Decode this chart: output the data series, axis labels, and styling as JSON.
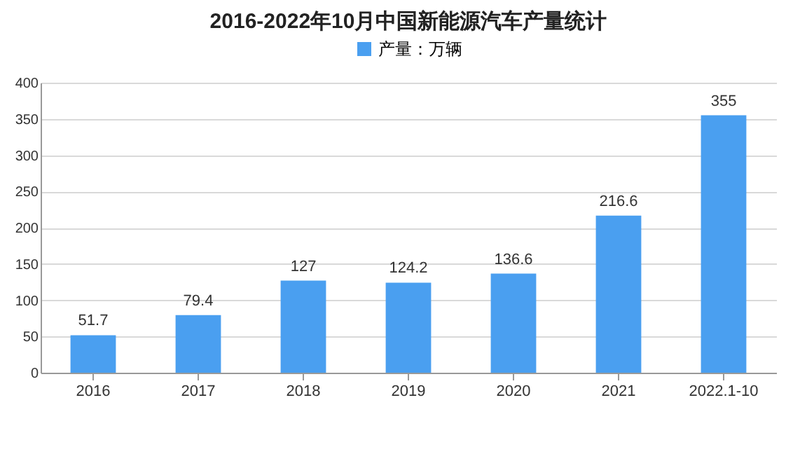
{
  "chart_data": {
    "type": "bar",
    "title": "2016-2022年10月中国新能源汽车产量统计",
    "categories": [
      "2016",
      "2017",
      "2018",
      "2019",
      "2020",
      "2021",
      "2022.1-10"
    ],
    "series": [
      {
        "name": "产量：万辆",
        "color": "#4a9ff0",
        "values": [
          51.7,
          79.4,
          127,
          124.2,
          136.6,
          216.6,
          355
        ]
      }
    ],
    "ylim": [
      0,
      400
    ],
    "yticks": [
      0,
      50,
      100,
      150,
      200,
      250,
      300,
      350,
      400
    ],
    "grid": "y",
    "legend": "top",
    "data_labels": true
  }
}
